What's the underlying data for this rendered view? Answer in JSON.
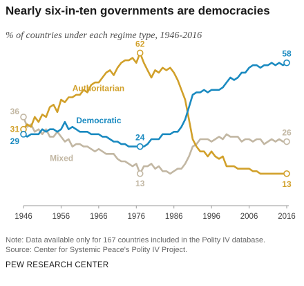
{
  "header": {
    "title": "Nearly six-in-ten governments are democracies",
    "subtitle": "% of countries under each regime type, 1946-2016"
  },
  "footer": {
    "note": "Note: Data available only for 167 countries included in the Polity IV database.",
    "source": "Source: Center for Systemic Peace's Polity IV Project.",
    "org": "PEW RESEARCH CENTER"
  },
  "chart_data": {
    "type": "line",
    "title": "Nearly six-in-ten governments are democracies",
    "subtitle": "% of countries under each regime type, 1946-2016",
    "xlabel": "",
    "ylabel": "",
    "x_ticks": [
      1946,
      1956,
      1966,
      1976,
      1986,
      1996,
      2006,
      2016
    ],
    "xlim": [
      1946,
      2016
    ],
    "ylim": [
      0,
      70
    ],
    "grid": false,
    "legend": "inline labels",
    "series": [
      {
        "name": "Authoritarian",
        "color": "#d1a02a",
        "x": [
          1946,
          1947,
          1948,
          1949,
          1950,
          1951,
          1952,
          1953,
          1954,
          1955,
          1956,
          1957,
          1958,
          1959,
          1960,
          1961,
          1962,
          1963,
          1964,
          1965,
          1966,
          1967,
          1968,
          1969,
          1970,
          1971,
          1972,
          1973,
          1974,
          1975,
          1976,
          1977,
          1978,
          1979,
          1980,
          1981,
          1982,
          1983,
          1984,
          1985,
          1986,
          1987,
          1988,
          1989,
          1990,
          1991,
          1992,
          1993,
          1994,
          1995,
          1996,
          1997,
          1998,
          1999,
          2000,
          2001,
          2002,
          2003,
          2004,
          2005,
          2006,
          2007,
          2008,
          2009,
          2010,
          2011,
          2012,
          2013,
          2014,
          2015,
          2016
        ],
        "values": [
          31,
          33,
          32,
          36,
          34,
          37,
          36,
          40,
          41,
          38,
          43,
          42,
          44,
          44,
          45,
          45,
          47,
          46,
          49,
          50,
          50,
          52,
          54,
          55,
          53,
          56,
          58,
          59,
          59,
          60,
          58,
          62,
          58,
          55,
          52,
          55,
          54,
          56,
          55,
          56,
          54,
          51,
          47,
          43,
          35,
          27,
          24,
          22,
          22,
          20,
          22,
          20,
          19,
          20,
          16,
          16,
          16,
          15,
          15,
          15,
          15,
          14,
          14,
          13,
          13,
          13,
          13,
          13,
          13,
          13,
          13
        ],
        "start_label": "31",
        "peak_label": "62",
        "end_label": "13"
      },
      {
        "name": "Democratic",
        "color": "#1a8ac0",
        "x": [
          1946,
          1947,
          1948,
          1949,
          1950,
          1951,
          1952,
          1953,
          1954,
          1955,
          1956,
          1957,
          1958,
          1959,
          1960,
          1961,
          1962,
          1963,
          1964,
          1965,
          1966,
          1967,
          1968,
          1969,
          1970,
          1971,
          1972,
          1973,
          1974,
          1975,
          1976,
          1977,
          1978,
          1979,
          1980,
          1981,
          1982,
          1983,
          1984,
          1985,
          1986,
          1987,
          1988,
          1989,
          1990,
          1991,
          1992,
          1993,
          1994,
          1995,
          1996,
          1997,
          1998,
          1999,
          2000,
          2001,
          2002,
          2003,
          2004,
          2005,
          2006,
          2007,
          2008,
          2009,
          2010,
          2011,
          2012,
          2013,
          2014,
          2015,
          2016
        ],
        "values": [
          29,
          28,
          29,
          29,
          29,
          31,
          30,
          31,
          31,
          30,
          31,
          34,
          31,
          32,
          31,
          30,
          30,
          30,
          29,
          29,
          29,
          28,
          28,
          27,
          26,
          26,
          25,
          25,
          24,
          24,
          24,
          24,
          24,
          25,
          27,
          27,
          27,
          29,
          29,
          29,
          30,
          30,
          32,
          35,
          40,
          45,
          46,
          46,
          47,
          46,
          47,
          47,
          47,
          48,
          50,
          52,
          51,
          52,
          54,
          54,
          56,
          57,
          57,
          56,
          57,
          57,
          58,
          57,
          58,
          57,
          58
        ],
        "start_label": "29",
        "marker_label": "24",
        "end_label": "58"
      },
      {
        "name": "Mixed",
        "color": "#c2b7a3",
        "x": [
          1946,
          1947,
          1948,
          1949,
          1950,
          1951,
          1952,
          1953,
          1954,
          1955,
          1956,
          1957,
          1958,
          1959,
          1960,
          1961,
          1962,
          1963,
          1964,
          1965,
          1966,
          1967,
          1968,
          1969,
          1970,
          1971,
          1972,
          1973,
          1974,
          1975,
          1976,
          1977,
          1978,
          1979,
          1980,
          1981,
          1982,
          1983,
          1984,
          1985,
          1986,
          1987,
          1988,
          1989,
          1990,
          1991,
          1992,
          1993,
          1994,
          1995,
          1996,
          1997,
          1998,
          1999,
          2000,
          2001,
          2002,
          2003,
          2004,
          2005,
          2006,
          2007,
          2008,
          2009,
          2010,
          2011,
          2012,
          2013,
          2014,
          2015,
          2016
        ],
        "values": [
          36,
          32,
          33,
          30,
          31,
          29,
          31,
          28,
          28,
          30,
          28,
          26,
          27,
          24,
          25,
          25,
          24,
          24,
          23,
          22,
          23,
          22,
          21,
          21,
          21,
          19,
          18,
          18,
          17,
          16,
          17,
          13,
          16,
          16,
          17,
          15,
          16,
          14,
          14,
          13,
          14,
          15,
          15,
          17,
          20,
          24,
          25,
          27,
          27,
          27,
          26,
          27,
          28,
          27,
          29,
          28,
          28,
          28,
          26,
          27,
          27,
          26,
          27,
          27,
          25,
          26,
          27,
          26,
          27,
          26,
          26
        ],
        "start_label": "36",
        "marker_label": "13",
        "end_label": "26"
      }
    ]
  }
}
